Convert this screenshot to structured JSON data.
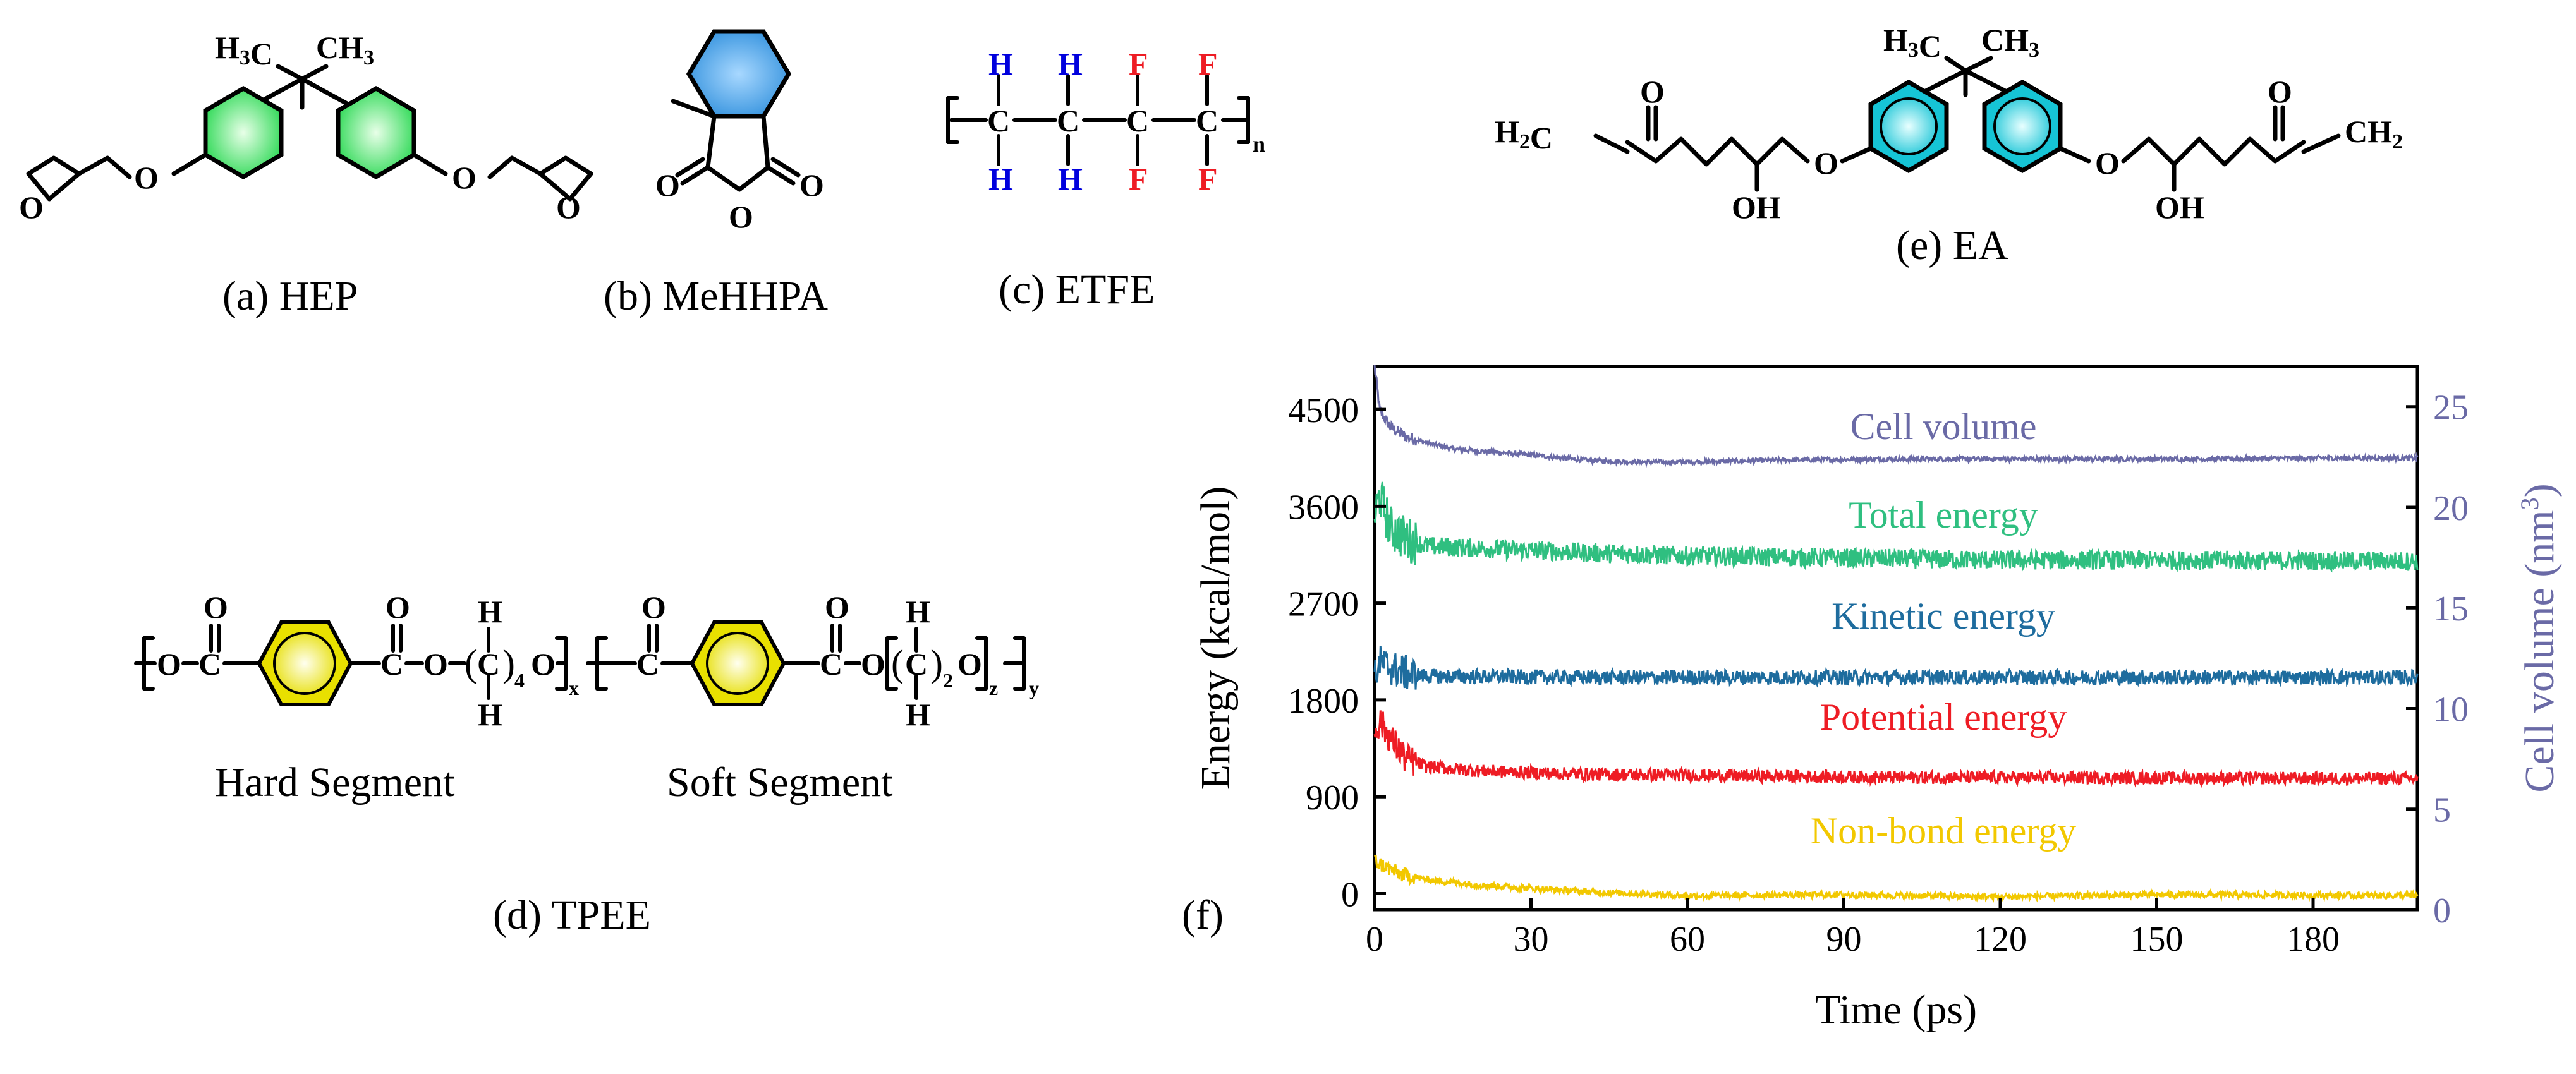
{
  "panels": {
    "a": {
      "caption": "(a) HEP",
      "top_label": "H3C",
      "top_label2": "CH3",
      "ring_color": "#22d84a",
      "o_labels": [
        "O",
        "O",
        "O",
        "O"
      ]
    },
    "b": {
      "caption": "(b) MeHHPA",
      "ring_color": "#3aa0e0",
      "o_labels": [
        "O",
        "O",
        "O"
      ]
    },
    "c": {
      "caption": "(c) ETFE",
      "h_color": "#0000dd",
      "f_color": "#ee1c24",
      "top_atoms": [
        "H",
        "H",
        "F",
        "F"
      ],
      "bottom_atoms": [
        "H",
        "H",
        "F",
        "F"
      ],
      "c_atoms": [
        "C",
        "C",
        "C",
        "C"
      ],
      "subscript": "n"
    },
    "d": {
      "caption": "(d) TPEE",
      "hard_label": "Hard Segment",
      "soft_label": "Soft Segment",
      "ring_color": "#e8e000",
      "sub_4": "4",
      "sub_x": "x",
      "sub_2": "2",
      "sub_z": "z",
      "sub_y": "y",
      "atoms": {
        "O": "O",
        "C": "C",
        "H": "H"
      }
    },
    "e": {
      "caption": "(e) EA",
      "top_label": "H3C",
      "top_label2": "CH3",
      "ring_color": "#19c8d8",
      "left_end": "H2C",
      "right_end": "CH2",
      "oh": "OH",
      "o": "O"
    },
    "f": {
      "panel_label": "(f)"
    }
  },
  "chart_data": {
    "type": "line",
    "xlabel": "Time (ps)",
    "ylabel": "Energy (kcal/mol)",
    "y2label": "Cell volume (nm3)",
    "xlim": [
      0,
      200
    ],
    "ylim": [
      -150,
      4900
    ],
    "y2lim": [
      0,
      27
    ],
    "xticks": [
      0,
      30,
      60,
      90,
      120,
      150,
      180
    ],
    "yticks": [
      0,
      900,
      1800,
      2700,
      3600,
      4500
    ],
    "y2ticks": [
      0,
      5,
      10,
      15,
      20,
      25
    ],
    "series": [
      {
        "name": "Cell volume",
        "color": "#6a6aa6",
        "axis": "right",
        "points": [
          [
            0,
            27
          ],
          [
            1,
            24.8
          ],
          [
            3,
            24.0
          ],
          [
            6,
            23.5
          ],
          [
            10,
            23.2
          ],
          [
            15,
            22.9
          ],
          [
            20,
            22.8
          ],
          [
            30,
            22.6
          ],
          [
            40,
            22.35
          ],
          [
            50,
            22.25
          ],
          [
            60,
            22.25
          ],
          [
            80,
            22.35
          ],
          [
            100,
            22.4
          ],
          [
            120,
            22.4
          ],
          [
            140,
            22.4
          ],
          [
            160,
            22.4
          ],
          [
            180,
            22.45
          ],
          [
            200,
            22.45
          ]
        ],
        "noise": 0.12
      },
      {
        "name": "Total energy",
        "color": "#2fbf80",
        "axis": "left",
        "points": [
          [
            0,
            3500
          ],
          [
            1,
            3700
          ],
          [
            3,
            3400
          ],
          [
            6,
            3300
          ],
          [
            10,
            3230
          ],
          [
            20,
            3210
          ],
          [
            40,
            3170
          ],
          [
            60,
            3140
          ],
          [
            90,
            3120
          ],
          [
            120,
            3100
          ],
          [
            150,
            3100
          ],
          [
            200,
            3090
          ]
        ],
        "noise": 90
      },
      {
        "name": "Kinetic energy",
        "color": "#1e6c9e",
        "axis": "left",
        "points": [
          [
            0,
            2000
          ],
          [
            1,
            2150
          ],
          [
            3,
            2100
          ],
          [
            6,
            2050
          ],
          [
            10,
            2020
          ],
          [
            40,
            2010
          ],
          [
            100,
            2010
          ],
          [
            200,
            2010
          ]
        ],
        "noise": 70
      },
      {
        "name": "Potential energy",
        "color": "#ee1c24",
        "axis": "left",
        "points": [
          [
            0,
            1500
          ],
          [
            1,
            1600
          ],
          [
            3,
            1450
          ],
          [
            6,
            1250
          ],
          [
            10,
            1180
          ],
          [
            20,
            1140
          ],
          [
            40,
            1110
          ],
          [
            100,
            1080
          ],
          [
            200,
            1070
          ]
        ],
        "noise": 60
      },
      {
        "name": "Non-bond energy",
        "color": "#f2c800",
        "axis": "left",
        "points": [
          [
            0,
            300
          ],
          [
            2,
            250
          ],
          [
            5,
            180
          ],
          [
            10,
            130
          ],
          [
            20,
            80
          ],
          [
            40,
            20
          ],
          [
            60,
            -20
          ],
          [
            90,
            -10
          ],
          [
            120,
            -30
          ],
          [
            150,
            -10
          ],
          [
            200,
            -20
          ]
        ],
        "noise": 30
      }
    ],
    "annotations": [
      "Cell volume",
      "Total energy",
      "Kinetic energy",
      "Potential energy",
      "Non-bond energy"
    ]
  }
}
